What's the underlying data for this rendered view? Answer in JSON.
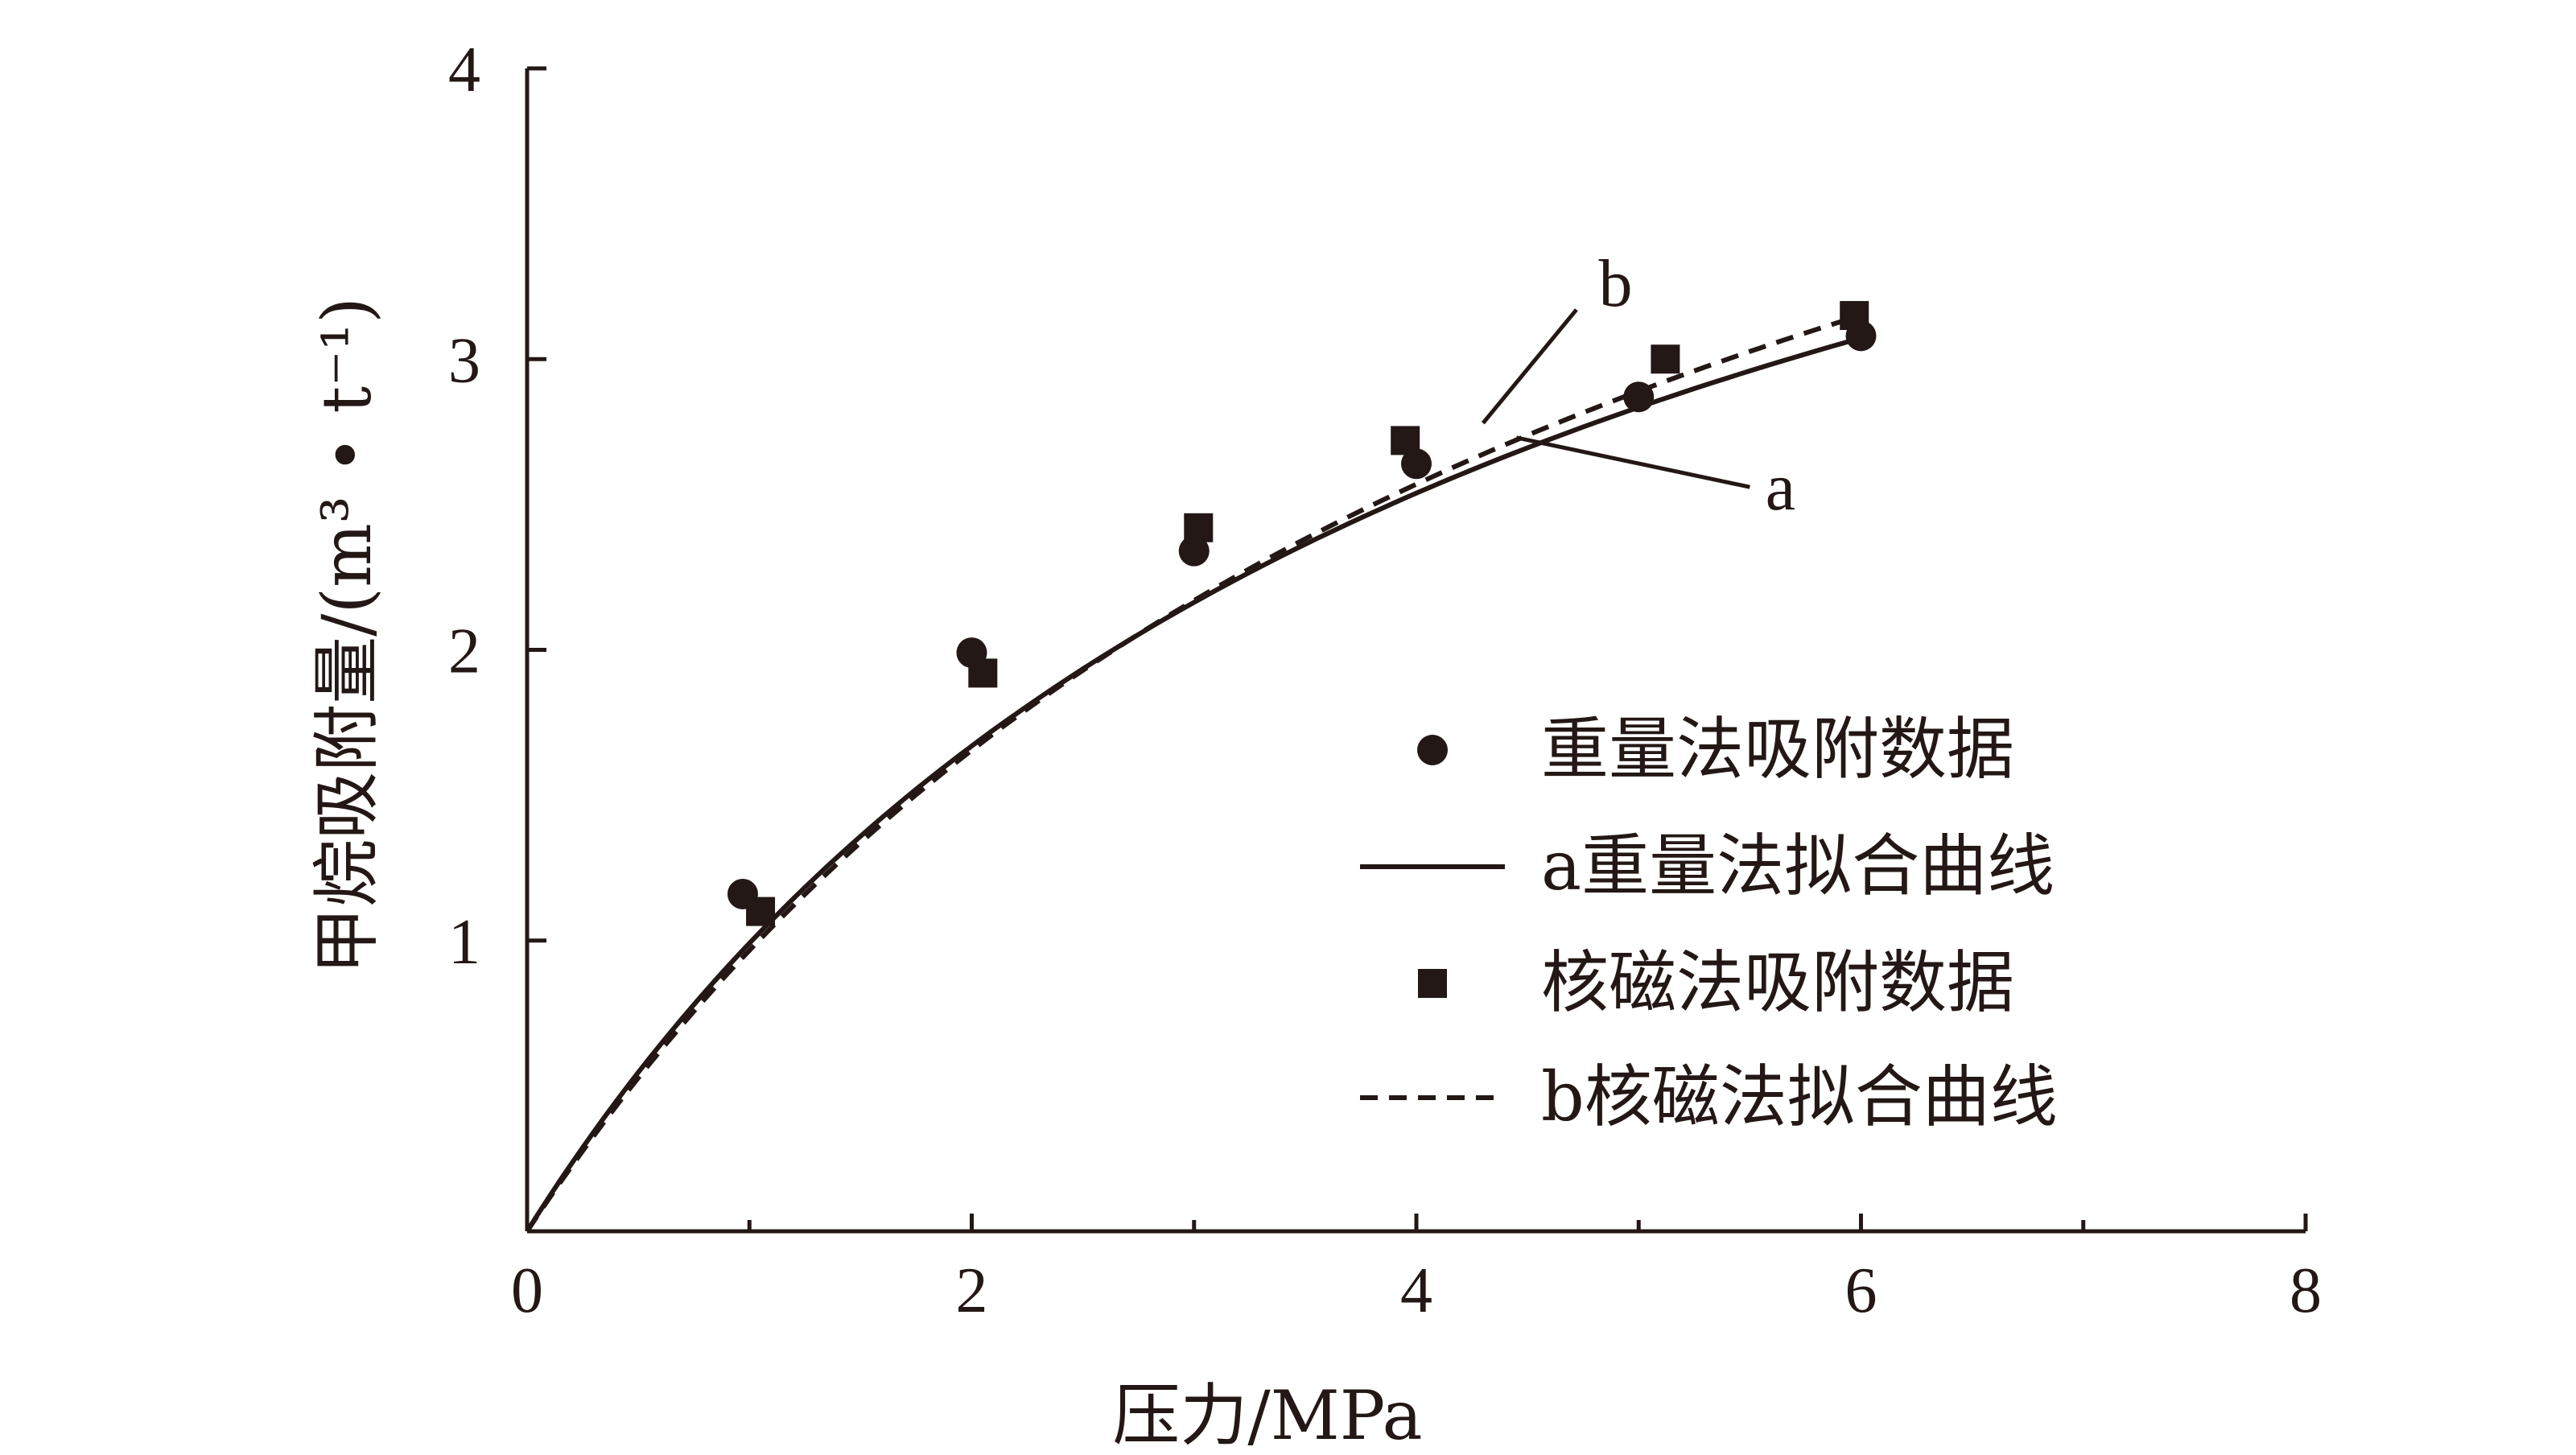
{
  "chart_data": {
    "type": "scatter",
    "title": "",
    "xlabel": "压力/MPa",
    "ylabel": "甲烷吸附量/(m³ • t⁻¹)",
    "xlim": [
      0,
      8
    ],
    "ylim": [
      0,
      4
    ],
    "xticks": [
      "0",
      "2",
      "4",
      "6",
      "8"
    ],
    "yticks": [
      "1",
      "2",
      "3",
      "4"
    ],
    "grid": false,
    "legend_position": "bottom-right",
    "series": [
      {
        "name": "重量法吸附数据",
        "kind": "scatter",
        "marker": "circle",
        "color": "#231815",
        "points": [
          [
            0.97,
            1.16
          ],
          [
            2.0,
            1.99
          ],
          [
            3.0,
            2.34
          ],
          [
            4.0,
            2.64
          ],
          [
            5.0,
            2.87
          ],
          [
            6.0,
            3.08
          ]
        ]
      },
      {
        "name": "a重量法拟合曲线",
        "kind": "line",
        "dash": "solid",
        "color": "#231815",
        "model": "langmuir",
        "vl": 5.3,
        "pl": 4.35,
        "x_range": [
          0,
          6
        ]
      },
      {
        "name": "核磁法吸附数据",
        "kind": "scatter",
        "marker": "square",
        "color": "#231815",
        "points": [
          [
            1.05,
            1.1
          ],
          [
            2.05,
            1.92
          ],
          [
            3.02,
            2.42
          ],
          [
            3.95,
            2.72
          ],
          [
            5.12,
            3.0
          ],
          [
            5.97,
            3.15
          ]
        ]
      },
      {
        "name": "b核磁法拟合曲线",
        "kind": "line",
        "dash": "dashed",
        "color": "#231815",
        "model": "langmuir",
        "vl": 5.75,
        "pl": 4.95,
        "x_range": [
          0,
          6
        ]
      }
    ],
    "annotations": [
      {
        "text": "b",
        "x": 4.3,
        "y": 2.75
      },
      {
        "text": "a",
        "x": 4.45,
        "y": 2.75
      }
    ]
  }
}
